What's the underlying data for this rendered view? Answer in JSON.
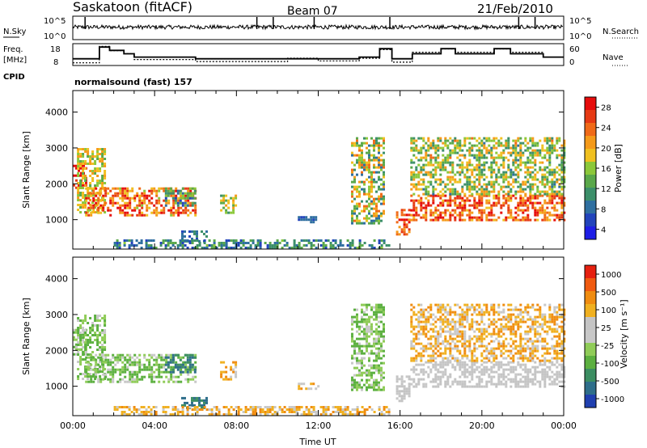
{
  "header": {
    "station": "Saskatoon (fitACF)",
    "beam": "Beam 07",
    "date": "21/Feb/2010"
  },
  "panels": {
    "nsky_label": "N.Sky",
    "nsky_ticks": [
      "10^5",
      "10^0"
    ],
    "nsearch_label": "N.Search",
    "nsearch_ticks": [
      "10^5",
      "10^0"
    ],
    "freq_label_1": "Freq.",
    "freq_label_2": "[MHz]",
    "freq_ticks": [
      "18",
      "8"
    ],
    "nave_label": "Nave",
    "nave_ticks": [
      "60",
      "0"
    ],
    "cpid_label": "CPID",
    "cpid_value": "normalsound (fast) 157"
  },
  "colors": {
    "power_scale": [
      "#1e1ee6",
      "#2244bb",
      "#2f6fa0",
      "#3c8f6a",
      "#5aa84a",
      "#8cc83a",
      "#f0c020",
      "#f59a1a",
      "#f06a18",
      "#e63a14",
      "#e60c0c"
    ],
    "velocity_scale": [
      "#2040b0",
      "#2e6e8a",
      "#3c8e62",
      "#5cb040",
      "#90cc58",
      "#c8c8c8",
      "#c4c4c4",
      "#f0b020",
      "#f08c10",
      "#f05a10",
      "#e62010"
    ]
  },
  "chart_data": [
    {
      "type": "heatmap",
      "name": "power",
      "xlabel": "Time UT",
      "ylabel": "Slant Range [km]",
      "x_ticks": [
        "00:00",
        "04:00",
        "08:00",
        "12:00",
        "16:00",
        "20:00",
        "00:00"
      ],
      "x_range_hours": [
        0,
        24
      ],
      "y_range_km": [
        180,
        4600
      ],
      "y_ticks": [
        1000,
        2000,
        3000,
        4000
      ],
      "colorbar_label": "Power [dB]",
      "colorbar_ticks": [
        "28",
        "24",
        "20",
        "16",
        "12",
        "8",
        "4"
      ],
      "colorbar_range": [
        0,
        30
      ]
    },
    {
      "type": "heatmap",
      "name": "velocity",
      "xlabel": "Time UT",
      "ylabel": "Slant Range [km]",
      "x_ticks": [
        "00:00",
        "04:00",
        "08:00",
        "12:00",
        "16:00",
        "20:00",
        "00:00"
      ],
      "x_range_hours": [
        0,
        24
      ],
      "y_range_km": [
        180,
        4600
      ],
      "y_ticks": [
        1000,
        2000,
        3000,
        4000
      ],
      "colorbar_label": "Velocity [m s⁻¹]",
      "colorbar_ticks": [
        "1000",
        "500",
        "100",
        "25",
        "-25",
        "-100",
        "-500",
        "-1000"
      ],
      "colorbar_range": [
        -1000,
        1000
      ]
    }
  ],
  "line_data": {
    "freq_mhz": [
      [
        0,
        10
      ],
      [
        1.3,
        10
      ],
      [
        1.3,
        17
      ],
      [
        1.8,
        17
      ],
      [
        1.8,
        15
      ],
      [
        2.5,
        15
      ],
      [
        2.5,
        13
      ],
      [
        3.0,
        13
      ],
      [
        3.0,
        11
      ],
      [
        6.0,
        11
      ],
      [
        6.0,
        10
      ],
      [
        14.0,
        10
      ],
      [
        14.0,
        11
      ],
      [
        15.0,
        11
      ],
      [
        15.0,
        16
      ],
      [
        15.6,
        16
      ],
      [
        15.6,
        10
      ],
      [
        16.6,
        10
      ],
      [
        16.6,
        13
      ],
      [
        18.0,
        13
      ],
      [
        18.0,
        16
      ],
      [
        18.7,
        16
      ],
      [
        18.7,
        13
      ],
      [
        20.6,
        13
      ],
      [
        20.6,
        16
      ],
      [
        21.4,
        16
      ],
      [
        21.4,
        13
      ],
      [
        23.0,
        13
      ],
      [
        23.0,
        11
      ],
      [
        24,
        11
      ]
    ],
    "nave": [
      [
        0,
        8
      ],
      [
        1.3,
        8
      ],
      [
        1.3,
        58
      ],
      [
        1.8,
        58
      ],
      [
        1.8,
        45
      ],
      [
        2.5,
        45
      ],
      [
        2.5,
        36
      ],
      [
        3.0,
        36
      ],
      [
        3.0,
        18
      ],
      [
        6.0,
        18
      ],
      [
        6.0,
        12
      ],
      [
        10.5,
        12
      ],
      [
        10.5,
        22
      ],
      [
        12.0,
        22
      ],
      [
        12.0,
        14
      ],
      [
        14.0,
        14
      ],
      [
        14.0,
        22
      ],
      [
        15.0,
        22
      ],
      [
        15.0,
        48
      ],
      [
        15.6,
        48
      ],
      [
        15.6,
        10
      ],
      [
        16.6,
        10
      ],
      [
        16.6,
        40
      ],
      [
        18.0,
        40
      ],
      [
        18.0,
        50
      ],
      [
        18.7,
        50
      ],
      [
        18.7,
        40
      ],
      [
        20.6,
        40
      ],
      [
        20.6,
        50
      ],
      [
        21.4,
        50
      ],
      [
        21.4,
        40
      ],
      [
        23.0,
        40
      ],
      [
        23.0,
        25
      ],
      [
        24,
        25
      ]
    ]
  }
}
